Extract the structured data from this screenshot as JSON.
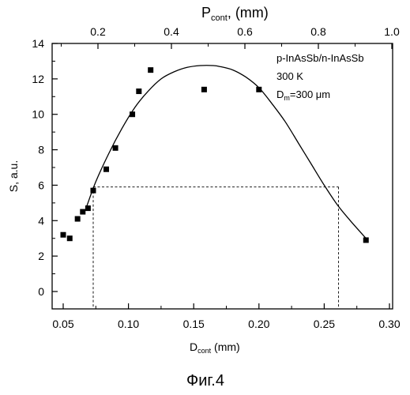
{
  "chart_data": {
    "type": "scatter",
    "title": "",
    "xlabel_main": "D",
    "xlabel_sub": "cont",
    "xlabel_unit": " (mm)",
    "ylabel": "S, a.u.",
    "top_label_main": "P",
    "top_label_sub": "cont",
    "top_label_unit": ", (mm)",
    "xlim": [
      0.035,
      0.32
    ],
    "ylim": [
      -1.1,
      14
    ],
    "top_xlim": [
      0.0775,
      1.0
    ],
    "x_ticks": [
      0.05,
      0.1,
      0.15,
      0.2,
      0.25,
      0.3
    ],
    "x_tick_labels": [
      "0.05",
      "0.10",
      "0.15",
      "0.20",
      "0.25",
      "0.30"
    ],
    "y_ticks": [
      0,
      2,
      4,
      6,
      8,
      10,
      12,
      14
    ],
    "y_tick_labels": [
      "0",
      "2",
      "4",
      "6",
      "8",
      "10",
      "12",
      "14"
    ],
    "top_ticks": [
      0.2,
      0.4,
      0.6,
      0.8,
      1.0
    ],
    "top_tick_labels": [
      "0.2",
      "0.4",
      "0.6",
      "0.8",
      "1.0"
    ],
    "legend_lines": [
      "p-InAsSb/n-InAsSb",
      "300 K"
    ],
    "legend_dm_main": "D",
    "legend_dm_sub": "m",
    "legend_dm_value": "=300 μm",
    "series": [
      {
        "marker": "square",
        "x": [
          0.05,
          0.055,
          0.061,
          0.065,
          0.069,
          0.073,
          0.083,
          0.09,
          0.103,
          0.108,
          0.117,
          0.158,
          0.2,
          0.282
        ],
        "y": [
          3.2,
          3.0,
          4.1,
          4.5,
          4.7,
          5.7,
          6.9,
          8.1,
          10.0,
          11.3,
          12.5,
          11.4,
          11.4,
          2.9
        ]
      }
    ],
    "fit_curve": {
      "x": [
        0.068,
        0.075,
        0.085,
        0.095,
        0.105,
        0.115,
        0.125,
        0.135,
        0.145,
        0.155,
        0.165,
        0.17,
        0.18,
        0.19,
        0.2,
        0.21,
        0.22,
        0.23,
        0.24,
        0.25,
        0.26,
        0.27,
        0.282
      ],
      "y": [
        4.8,
        6.2,
        7.8,
        9.2,
        10.4,
        11.3,
        12.0,
        12.4,
        12.65,
        12.75,
        12.75,
        12.7,
        12.5,
        12.1,
        11.5,
        10.6,
        9.6,
        8.4,
        7.2,
        6.0,
        4.9,
        4.0,
        3.0
      ]
    },
    "reference_lines": {
      "y": 5.9,
      "x_left": 0.073,
      "x_right": 0.261
    }
  },
  "caption": "Фиг.4"
}
